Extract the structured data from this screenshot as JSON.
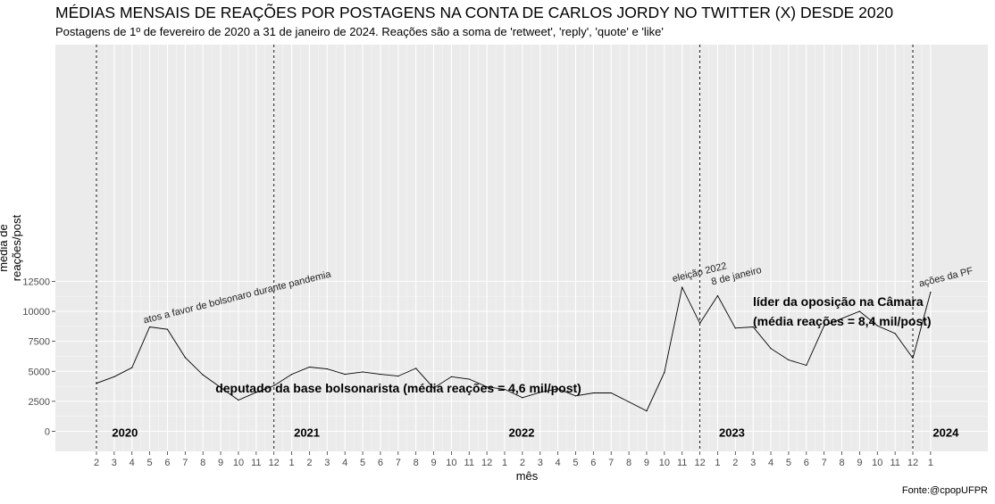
{
  "title": "MÉDIAS MENSAIS DE REAÇÕES POR POSTAGENS NA CONTA DE CARLOS JORDY NO TWITTER (X) DESDE 2020",
  "subtitle": "Postagens de 1º de fevereiro de 2020 a 31 de janeiro de 2024. Reações são a soma de 'retweet', 'reply', 'quote' e 'like'",
  "caption": "Fonte:@cpopUFPR",
  "chart_data": {
    "type": "line",
    "title": "MÉDIAS MENSAIS DE REAÇÕES POR POSTAGENS NA CONTA DE CARLOS JORDY NO TWITTER (X) DESDE 2020",
    "xlabel": "mês",
    "ylabel": "média de reações/post",
    "ylim": [
      -500,
      12700
    ],
    "yticks": [
      0,
      2500,
      5000,
      7500,
      10000,
      12500
    ],
    "ytick_labels": [
      "0",
      "2500",
      "5000",
      "7500",
      "10000",
      "12500"
    ],
    "x": [
      "2020-02",
      "2020-03",
      "2020-04",
      "2020-05",
      "2020-06",
      "2020-07",
      "2020-08",
      "2020-09",
      "2020-10",
      "2020-11",
      "2020-12",
      "2021-01",
      "2021-02",
      "2021-03",
      "2021-04",
      "2021-05",
      "2021-06",
      "2021-07",
      "2021-08",
      "2021-09",
      "2021-10",
      "2021-11",
      "2021-12",
      "2022-01",
      "2022-02",
      "2022-03",
      "2022-04",
      "2022-05",
      "2022-06",
      "2022-07",
      "2022-08",
      "2022-09",
      "2022-10",
      "2022-11",
      "2022-12",
      "2023-01",
      "2023-02",
      "2023-03",
      "2023-04",
      "2023-05",
      "2023-06",
      "2023-07",
      "2023-08",
      "2023-09",
      "2023-10",
      "2023-11",
      "2023-12",
      "2024-01"
    ],
    "xtick_labels": [
      "2",
      "3",
      "4",
      "5",
      "6",
      "7",
      "8",
      "9",
      "10",
      "11",
      "12",
      "1",
      "2",
      "3",
      "4",
      "5",
      "6",
      "7",
      "8",
      "9",
      "10",
      "11",
      "12",
      "1",
      "2",
      "3",
      "4",
      "5",
      "6",
      "7",
      "8",
      "9",
      "10",
      "11",
      "12",
      "1",
      "2",
      "3",
      "4",
      "5",
      "6",
      "7",
      "8",
      "9",
      "10",
      "11",
      "12",
      "1"
    ],
    "series": [
      {
        "values": [
          4000,
          4550,
          5300,
          8700,
          8500,
          6150,
          4700,
          3650,
          2600,
          3250,
          3800,
          4750,
          5350,
          5200,
          4750,
          4950,
          4750,
          4600,
          5250,
          3600,
          4550,
          4350,
          3700,
          3500,
          2800,
          3250,
          3550,
          2950,
          3200,
          3200,
          2450,
          1700,
          4900,
          12000,
          9000,
          11300,
          8600,
          8700,
          6900,
          5950,
          5500,
          8800,
          9400,
          10000,
          8800,
          8150,
          6100,
          11600
        ]
      }
    ],
    "vlines": [
      "2021-01",
      "2022-01",
      "2023-01",
      "2024-01"
    ],
    "vlines_pre": [
      "2020-02",
      "2020-12",
      "2022-12",
      "2023-12"
    ],
    "year_labels": [
      {
        "label": "2020",
        "at": "2020-03"
      },
      {
        "label": "2021",
        "at": "2021-01"
      },
      {
        "label": "2022",
        "at": "2022-01"
      },
      {
        "label": "2023",
        "at": "2023-01"
      },
      {
        "label": "2024",
        "at": "2024-01"
      }
    ],
    "annotations": [
      {
        "text": "atos a favor de bolsonaro durante pandemia",
        "at": "2020-05"
      },
      {
        "text": "eleição 2022",
        "at": "2022-11"
      },
      {
        "text": "8 de janeiro",
        "at": "2023-01"
      },
      {
        "text": "ações da PF",
        "at": "2024-01"
      }
    ],
    "period_labels": [
      "deputado da base bolsonarista (média reações = 4,6 mil/post)",
      "líder da oposição na Câmara",
      "(média reações = 8,4 mil/post)"
    ],
    "grid": true,
    "legend": "none"
  }
}
